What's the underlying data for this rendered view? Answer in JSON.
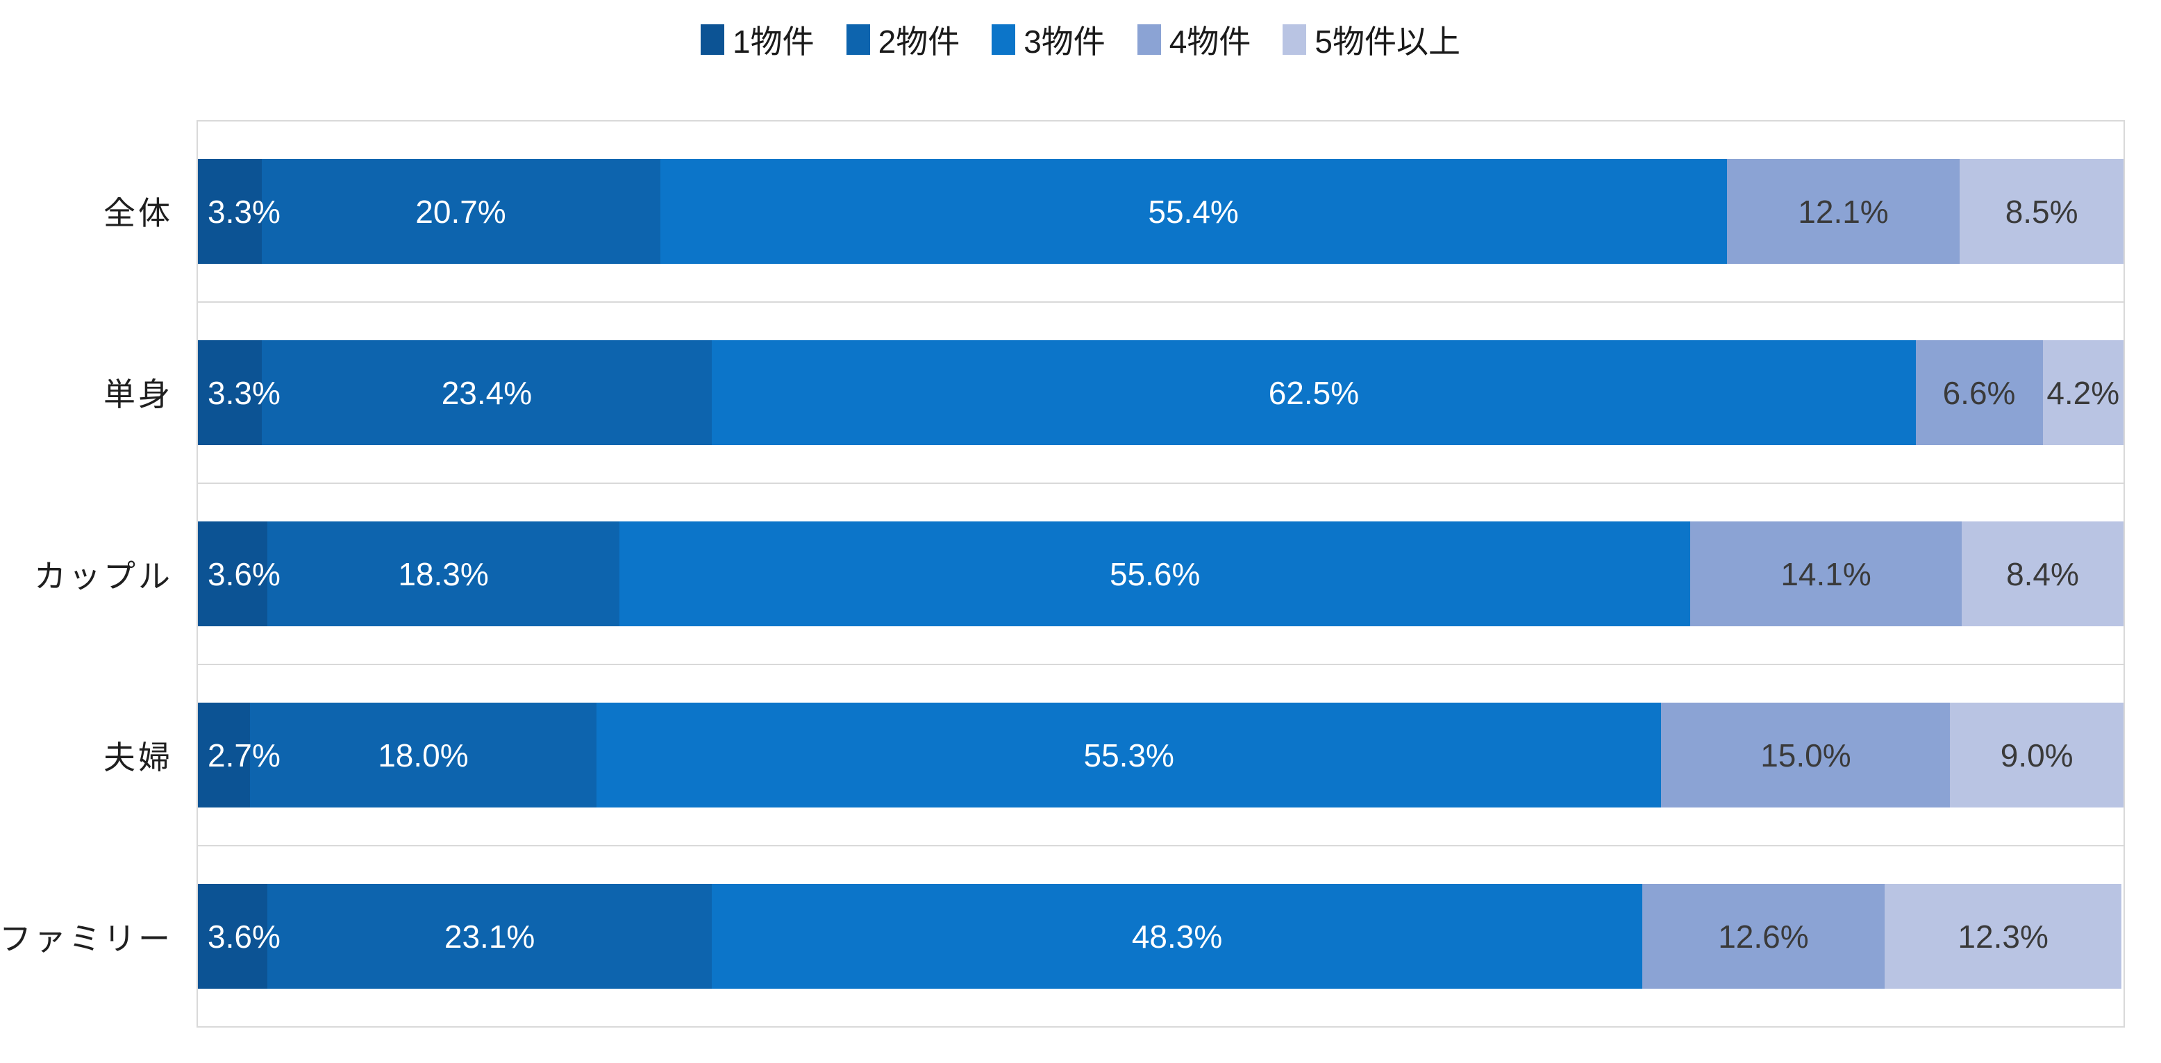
{
  "chart_data": {
    "type": "bar",
    "orientation": "horizontal",
    "stacked": true,
    "title": "",
    "xlabel": "",
    "ylabel": "",
    "xlim": [
      0,
      100
    ],
    "unit": "%",
    "legend_position": "top",
    "grid": "horizontal-band-separators",
    "categories": [
      "全体",
      "単身",
      "カップル",
      "夫婦",
      "ファミリー"
    ],
    "series": [
      {
        "name": "1物件",
        "color": "#0c5394",
        "text_color": "#ffffff",
        "values": [
          3.3,
          3.3,
          3.6,
          2.7,
          3.6
        ],
        "labels": [
          "3.3%",
          "3.3%",
          "3.6%",
          "2.7%",
          "3.6%"
        ]
      },
      {
        "name": "2物件",
        "color": "#0d64ae",
        "text_color": "#ffffff",
        "values": [
          20.7,
          23.4,
          18.3,
          18.0,
          23.1
        ],
        "labels": [
          "20.7%",
          "23.4%",
          "18.3%",
          "18.0%",
          "23.1%"
        ]
      },
      {
        "name": "3物件",
        "color": "#0c75c9",
        "text_color": "#ffffff",
        "values": [
          55.4,
          62.5,
          55.6,
          55.3,
          48.3
        ],
        "labels": [
          "55.4%",
          "62.5%",
          "55.6%",
          "55.3%",
          "48.3%"
        ]
      },
      {
        "name": "4物件",
        "color": "#8ba3d4",
        "text_color": "#3a3a3a",
        "values": [
          12.1,
          6.6,
          14.1,
          15.0,
          12.6
        ],
        "labels": [
          "12.1%",
          "6.6%",
          "14.1%",
          "15.0%",
          "12.6%"
        ]
      },
      {
        "name": "5物件以上",
        "color": "#b9c4e3",
        "text_color": "#3a3a3a",
        "values": [
          8.5,
          4.2,
          8.4,
          9.0,
          12.3
        ],
        "labels": [
          "8.5%",
          "4.2%",
          "8.4%",
          "9.0%",
          "12.3%"
        ]
      }
    ]
  },
  "style": {
    "background": "#ffffff",
    "grid_color": "#d9d9d9",
    "legend_text_color": "#1a1a1a",
    "category_text_color": "#1f1f1f"
  }
}
